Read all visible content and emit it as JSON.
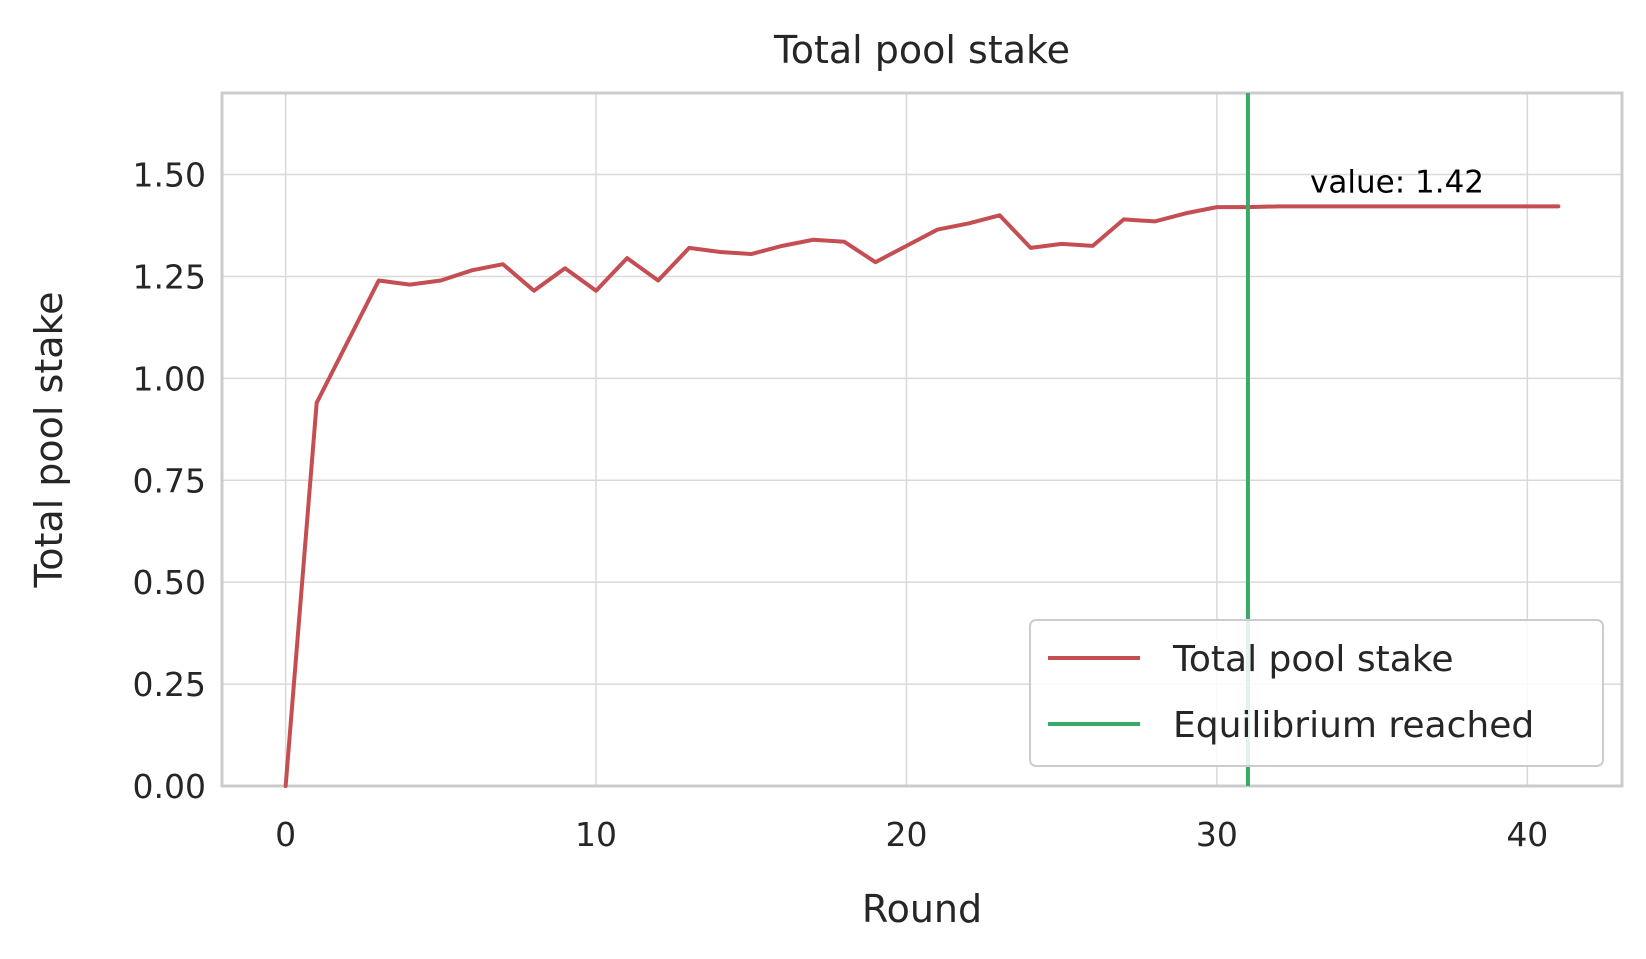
{
  "chart_data": {
    "type": "line",
    "title": "Total pool stake",
    "xlabel": "Round",
    "ylabel": "Total pool stake",
    "xlim": [
      -2.05,
      43.05
    ],
    "ylim": [
      0,
      1.7
    ],
    "xticks": [
      0,
      10,
      20,
      30,
      40
    ],
    "xtick_labels": [
      "0",
      "10",
      "20",
      "30",
      "40"
    ],
    "yticks": [
      0,
      0.25,
      0.5,
      0.75,
      1.0,
      1.25,
      1.5
    ],
    "ytick_labels": [
      "0.00",
      "0.25",
      "0.50",
      "0.75",
      "1.00",
      "1.25",
      "1.50"
    ],
    "grid": true,
    "legend_position": "lower-right",
    "series": [
      {
        "name": "Total pool stake",
        "color": "#c44e52",
        "x": [
          0,
          1,
          2,
          3,
          4,
          5,
          6,
          7,
          8,
          9,
          10,
          11,
          12,
          13,
          14,
          15,
          16,
          17,
          18,
          19,
          20,
          21,
          22,
          23,
          24,
          25,
          26,
          27,
          28,
          29,
          30,
          31,
          32,
          33,
          34,
          35,
          36,
          37,
          38,
          39,
          40,
          41
        ],
        "values": [
          0.0,
          0.94,
          1.09,
          1.24,
          1.23,
          1.24,
          1.265,
          1.28,
          1.215,
          1.27,
          1.215,
          1.295,
          1.24,
          1.32,
          1.31,
          1.305,
          1.325,
          1.34,
          1.335,
          1.285,
          1.325,
          1.365,
          1.38,
          1.4,
          1.32,
          1.33,
          1.325,
          1.39,
          1.385,
          1.405,
          1.42,
          1.42,
          1.422,
          1.422,
          1.422,
          1.422,
          1.422,
          1.422,
          1.422,
          1.422,
          1.422,
          1.422
        ]
      }
    ],
    "vlines": [
      {
        "name": "Equilibrium reached",
        "x": 31,
        "color": "#3aaa6b"
      }
    ],
    "annotations": [
      {
        "text": "value: 1.42",
        "x": 33,
        "y": 1.48
      }
    ]
  }
}
